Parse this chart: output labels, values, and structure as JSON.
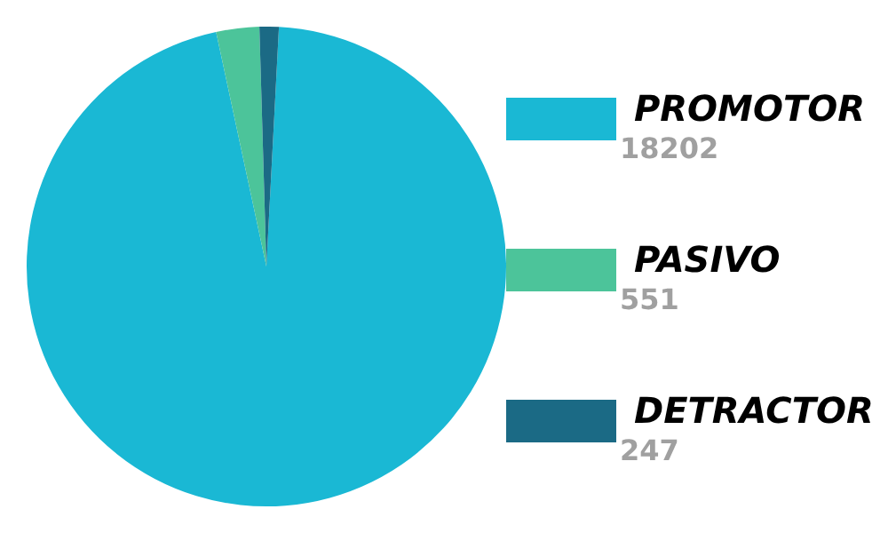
{
  "chart_data": {
    "type": "pie",
    "categories": [
      "PROMOTOR",
      "PASIVO",
      "DETRACTOR"
    ],
    "values": [
      18202,
      551,
      247
    ],
    "colors": [
      "#1ab8d4",
      "#4cc49a",
      "#1b6a85"
    ],
    "legend": "right",
    "data_labels": true
  }
}
